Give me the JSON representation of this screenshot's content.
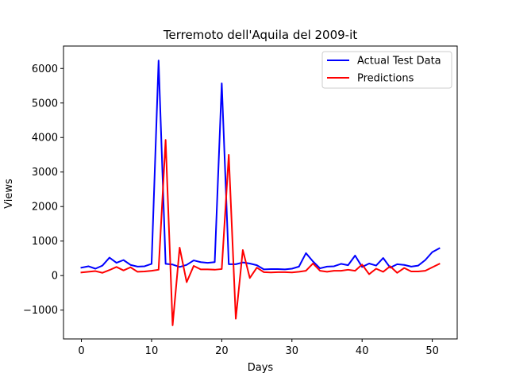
{
  "chart_data": {
    "type": "line",
    "title": "Terremoto dell'Aquila del 2009-it",
    "xlabel": "Days",
    "ylabel": "Views",
    "xlim": [
      -2.55,
      53.55
    ],
    "ylim": [
      -1835,
      6650
    ],
    "x_ticks": [
      0,
      10,
      20,
      30,
      40,
      50
    ],
    "y_ticks": [
      -1000,
      0,
      1000,
      2000,
      3000,
      4000,
      5000,
      6000
    ],
    "x_tick_labels": [
      "0",
      "10",
      "20",
      "30",
      "40",
      "50"
    ],
    "y_tick_labels": [
      "−1000",
      "0",
      "1000",
      "2000",
      "3000",
      "4000",
      "5000",
      "6000"
    ],
    "grid": false,
    "legend_position": "top-right",
    "x": [
      0,
      1,
      2,
      3,
      4,
      5,
      6,
      7,
      8,
      9,
      10,
      11,
      12,
      13,
      14,
      15,
      16,
      17,
      18,
      19,
      20,
      21,
      22,
      23,
      24,
      25,
      26,
      27,
      28,
      29,
      30,
      31,
      32,
      33,
      34,
      35,
      36,
      37,
      38,
      39,
      40,
      41,
      42,
      43,
      44,
      45,
      46,
      47,
      48,
      49,
      50,
      51
    ],
    "series": [
      {
        "name": "Actual Test Data",
        "color": "#0000ff",
        "values": [
          230,
          270,
          200,
          290,
          520,
          370,
          450,
          310,
          260,
          270,
          340,
          6230,
          340,
          320,
          250,
          310,
          440,
          390,
          370,
          390,
          5570,
          330,
          330,
          380,
          350,
          300,
          180,
          190,
          190,
          180,
          200,
          260,
          650,
          410,
          210,
          260,
          270,
          340,
          300,
          580,
          250,
          350,
          290,
          510,
          230,
          330,
          310,
          260,
          290,
          450,
          680,
          790
        ]
      },
      {
        "name": "Predictions",
        "color": "#ff0000",
        "values": [
          90,
          110,
          130,
          80,
          160,
          250,
          150,
          240,
          110,
          120,
          140,
          170,
          3930,
          -1440,
          810,
          -190,
          280,
          180,
          180,
          170,
          190,
          3500,
          -1250,
          740,
          -70,
          230,
          100,
          90,
          100,
          100,
          90,
          110,
          140,
          350,
          140,
          110,
          140,
          140,
          170,
          140,
          320,
          40,
          200,
          110,
          270,
          80,
          220,
          120,
          120,
          140,
          240,
          340
        ]
      }
    ]
  }
}
